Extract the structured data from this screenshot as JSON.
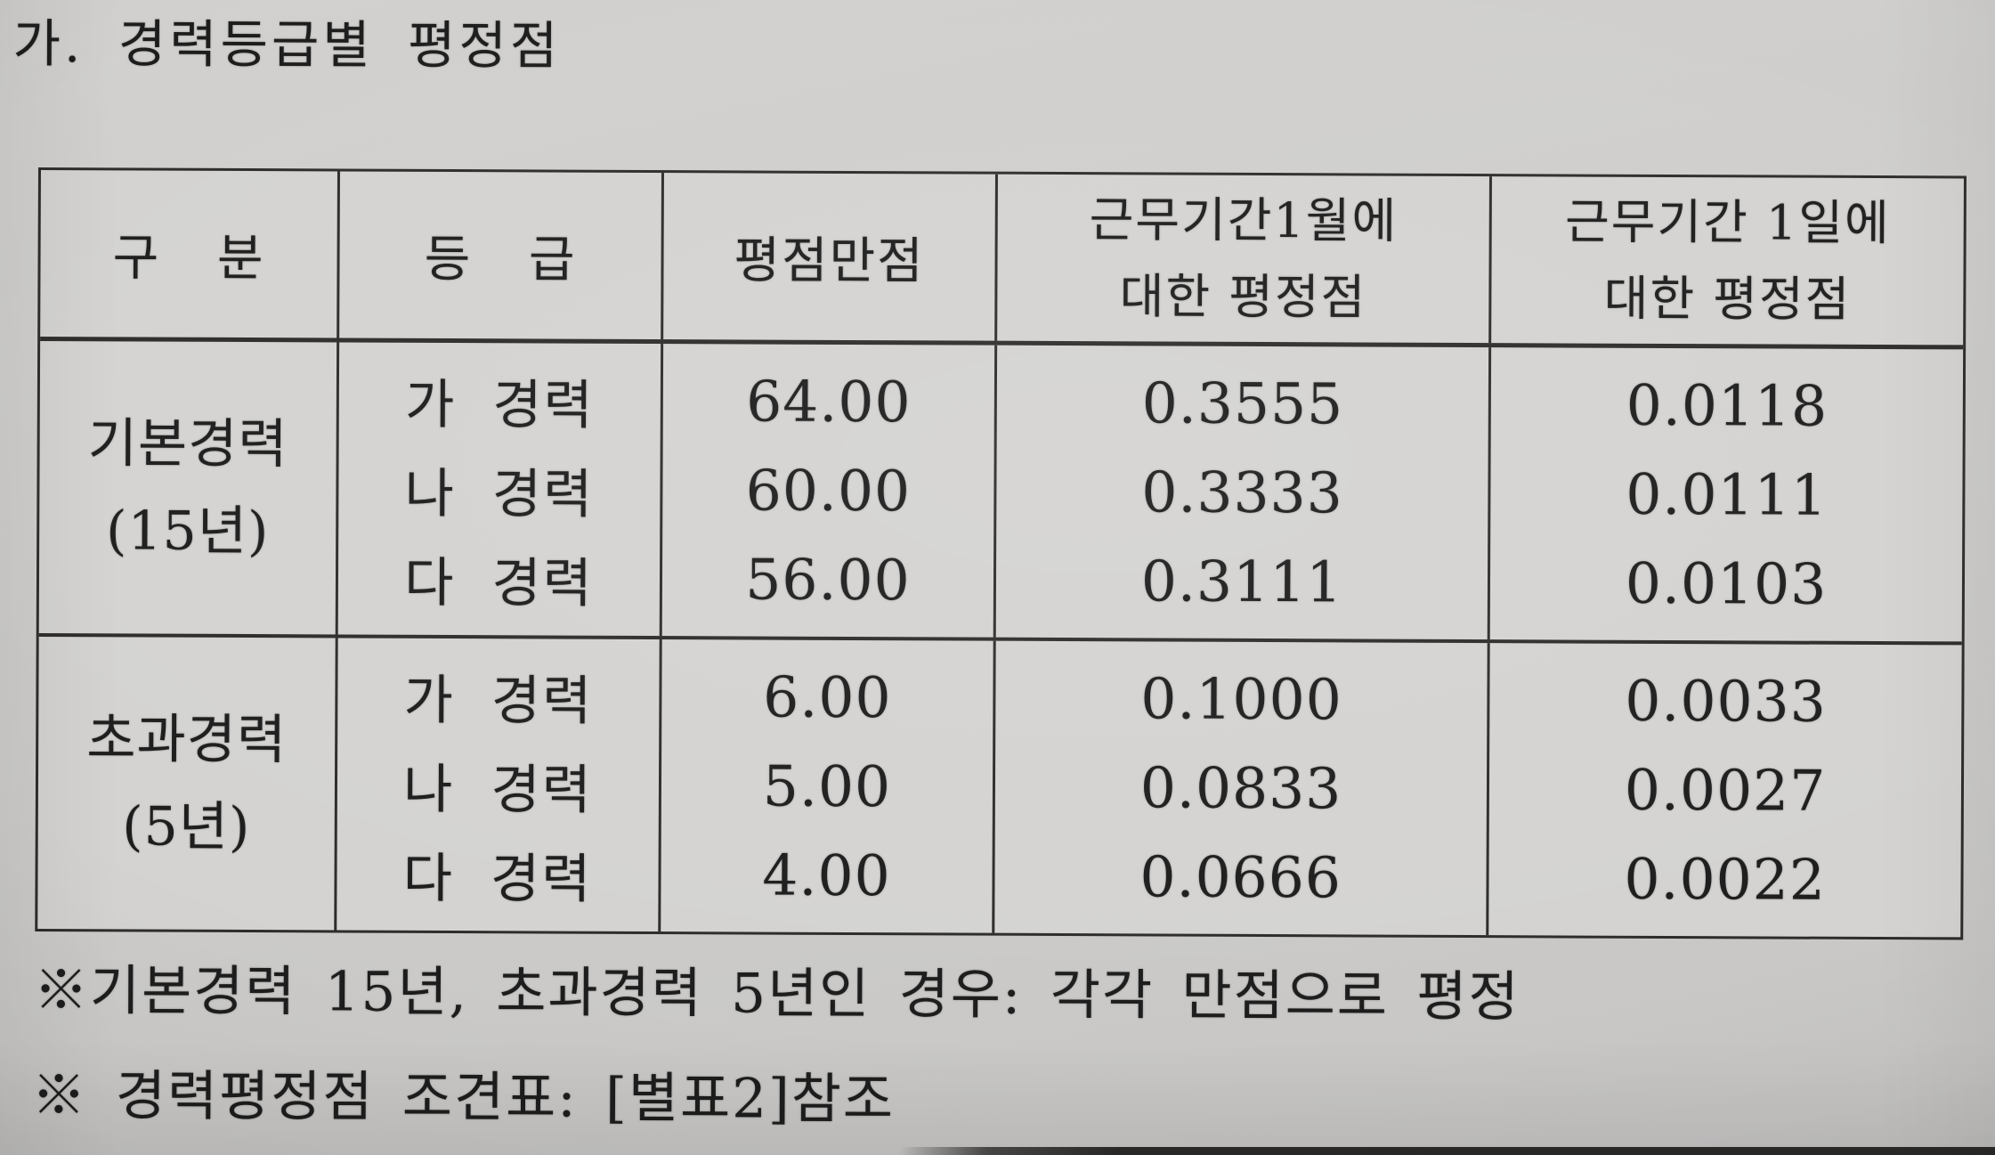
{
  "page": {
    "title": "가. 경력등급별 평정점"
  },
  "table": {
    "columns": [
      {
        "label": "구 분"
      },
      {
        "label": "등 급"
      },
      {
        "label": "평점만점"
      },
      {
        "line1": "근무기간1월에",
        "line2": "대한 평정점"
      },
      {
        "line1": "근무기간 1일에",
        "line2": "대한 평정점"
      }
    ],
    "groups": [
      {
        "category_line1": "기본경력",
        "category_line2": "(15년)",
        "rows": [
          {
            "grade": "가 경력",
            "max_score": "64.00",
            "per_month": "0.3555",
            "per_day": "0.0118"
          },
          {
            "grade": "나 경력",
            "max_score": "60.00",
            "per_month": "0.3333",
            "per_day": "0.0111"
          },
          {
            "grade": "다 경력",
            "max_score": "56.00",
            "per_month": "0.3111",
            "per_day": "0.0103"
          }
        ]
      },
      {
        "category_line1": "초과경력",
        "category_line2": "(5년)",
        "rows": [
          {
            "grade": "가 경력",
            "max_score": "6.00",
            "per_month": "0.1000",
            "per_day": "0.0033"
          },
          {
            "grade": "나 경력",
            "max_score": "5.00",
            "per_month": "0.0833",
            "per_day": "0.0027"
          },
          {
            "grade": "다 경력",
            "max_score": "4.00",
            "per_month": "0.0666",
            "per_day": "0.0022"
          }
        ]
      }
    ]
  },
  "footnotes": [
    "※기본경력 15년, 초과경력 5년인 경우: 각각 만점으로 평정",
    "※ 경력평정점 조견표: [별표2]참조"
  ]
}
